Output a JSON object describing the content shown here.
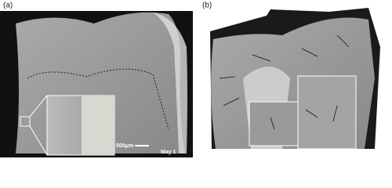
{
  "panels": [
    {
      "label": "(a)",
      "scale_bar": "500μm",
      "stamp": "May 1"
    },
    {
      "label": "(b)"
    }
  ]
}
